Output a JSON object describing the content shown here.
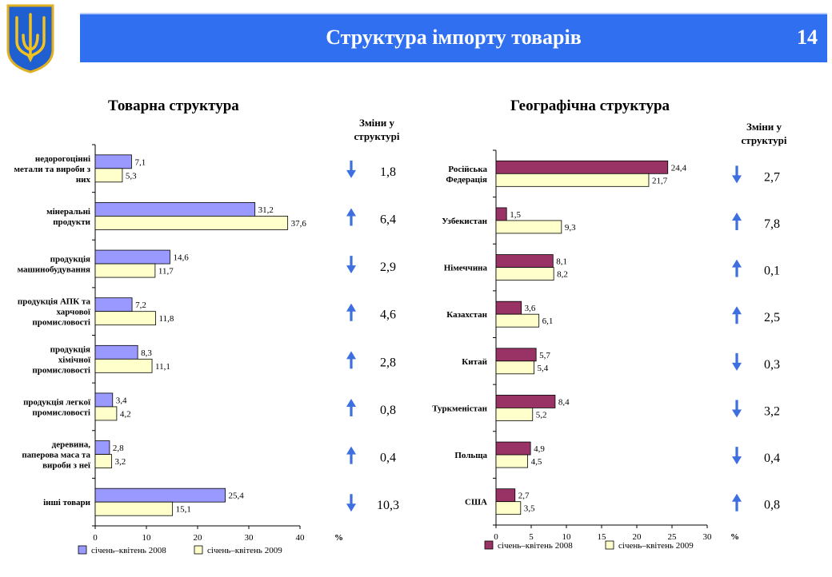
{
  "header": {
    "title": "Структура імпорту товарів",
    "page_number": "14"
  },
  "colors": {
    "banner": "#2f6ff0",
    "commodity_2008": "#9999ff",
    "commodity_2009": "#ffffcc",
    "geo_2008": "#993366",
    "geo_2009": "#ffffcc",
    "arrow": "#3d6fe0"
  },
  "icons": {
    "emblem": "trident-emblem-icon",
    "up": "arrow-up-icon",
    "down": "arrow-down-icon"
  },
  "chart_data": [
    {
      "type": "bar",
      "orientation": "horizontal",
      "title": "Товарна структура",
      "changes_header": "Зміни у структурі",
      "unit_label": "%",
      "categories": [
        "недорогоцінні метали та вироби з них",
        "мінеральні продукти",
        "продукція машинобудування",
        "продукція АПК та харчової промисловості",
        "продукція хімічної промисловості",
        "продукція легкої промисловості",
        "деревина, паперова маса та вироби з неї",
        "інші товари"
      ],
      "category_lines": [
        [
          "недорогоцінні",
          "метали та вироби з",
          "них"
        ],
        [
          "мінеральні",
          "продукти"
        ],
        [
          "продукція",
          "машинобудування"
        ],
        [
          "продукція АПК та",
          "харчової",
          "промисловості"
        ],
        [
          "продукція",
          "хімічної",
          "промисловості"
        ],
        [
          "продукція легкої",
          "промисловості"
        ],
        [
          "деревина,",
          "паперова маса та",
          "вироби з неї"
        ],
        [
          "інші товари"
        ]
      ],
      "series": [
        {
          "name": "січень–квітень 2008",
          "values": [
            7.1,
            31.2,
            14.6,
            7.2,
            8.3,
            3.4,
            2.8,
            25.4
          ],
          "labels": [
            "7,1",
            "31,2",
            "14,6",
            "7,2",
            "8,3",
            "3,4",
            "2,8",
            "25,4"
          ]
        },
        {
          "name": "січень–квітень 2009",
          "values": [
            5.3,
            37.6,
            11.7,
            11.8,
            11.1,
            4.2,
            3.2,
            15.1
          ],
          "labels": [
            "5,3",
            "37,6",
            "11,7",
            "11,8",
            "11,1",
            "4,2",
            "3,2",
            "15,1"
          ]
        }
      ],
      "changes": [
        {
          "direction": "down",
          "value": "1,8"
        },
        {
          "direction": "up",
          "value": "6,4"
        },
        {
          "direction": "down",
          "value": "2,9"
        },
        {
          "direction": "up",
          "value": "4,6"
        },
        {
          "direction": "up",
          "value": "2,8"
        },
        {
          "direction": "up",
          "value": "0,8"
        },
        {
          "direction": "up",
          "value": "0,4"
        },
        {
          "direction": "down",
          "value": "10,3"
        }
      ],
      "xlim": [
        0,
        40
      ],
      "xticks": [
        0,
        10,
        20,
        30,
        40
      ],
      "xtick_labels": [
        "0",
        "10",
        "20",
        "30",
        "40"
      ],
      "legend_position": "bottom"
    },
    {
      "type": "bar",
      "orientation": "horizontal",
      "title": "Географічна структура",
      "changes_header": "Зміни у структурі",
      "unit_label": "%",
      "categories": [
        "Російська Федерація",
        "Узбекистан",
        "Німеччина",
        "Казахстан",
        "Китай",
        "Туркменістан",
        "Польща",
        "США"
      ],
      "category_lines": [
        [
          "Російська",
          "Федерація"
        ],
        [
          "Узбекистан"
        ],
        [
          "Німеччина"
        ],
        [
          "Казахстан"
        ],
        [
          "Китай"
        ],
        [
          "Туркменістан"
        ],
        [
          "Польща"
        ],
        [
          "США"
        ]
      ],
      "series": [
        {
          "name": "січень–квітень 2008",
          "values": [
            24.4,
            1.5,
            8.1,
            3.6,
            5.7,
            8.4,
            4.9,
            2.7
          ],
          "labels": [
            "24,4",
            "1,5",
            "8,1",
            "3,6",
            "5,7",
            "8,4",
            "4,9",
            "2,7"
          ]
        },
        {
          "name": "січень–квітень 2009",
          "values": [
            21.7,
            9.3,
            8.2,
            6.1,
            5.4,
            5.2,
            4.5,
            3.5
          ],
          "labels": [
            "21,7",
            "9,3",
            "8,2",
            "6,1",
            "5,4",
            "5,2",
            "4,5",
            "3,5"
          ]
        }
      ],
      "changes": [
        {
          "direction": "down",
          "value": "2,7"
        },
        {
          "direction": "up",
          "value": "7,8"
        },
        {
          "direction": "up",
          "value": "0,1"
        },
        {
          "direction": "up",
          "value": "2,5"
        },
        {
          "direction": "down",
          "value": "0,3"
        },
        {
          "direction": "down",
          "value": "3,2"
        },
        {
          "direction": "down",
          "value": "0,4"
        },
        {
          "direction": "up",
          "value": "0,8"
        }
      ],
      "xlim": [
        0,
        30
      ],
      "xticks": [
        0,
        5,
        10,
        15,
        20,
        25,
        30
      ],
      "xtick_labels": [
        "0",
        "5",
        "10",
        "15",
        "20",
        "25",
        "30"
      ],
      "legend_position": "bottom"
    }
  ]
}
